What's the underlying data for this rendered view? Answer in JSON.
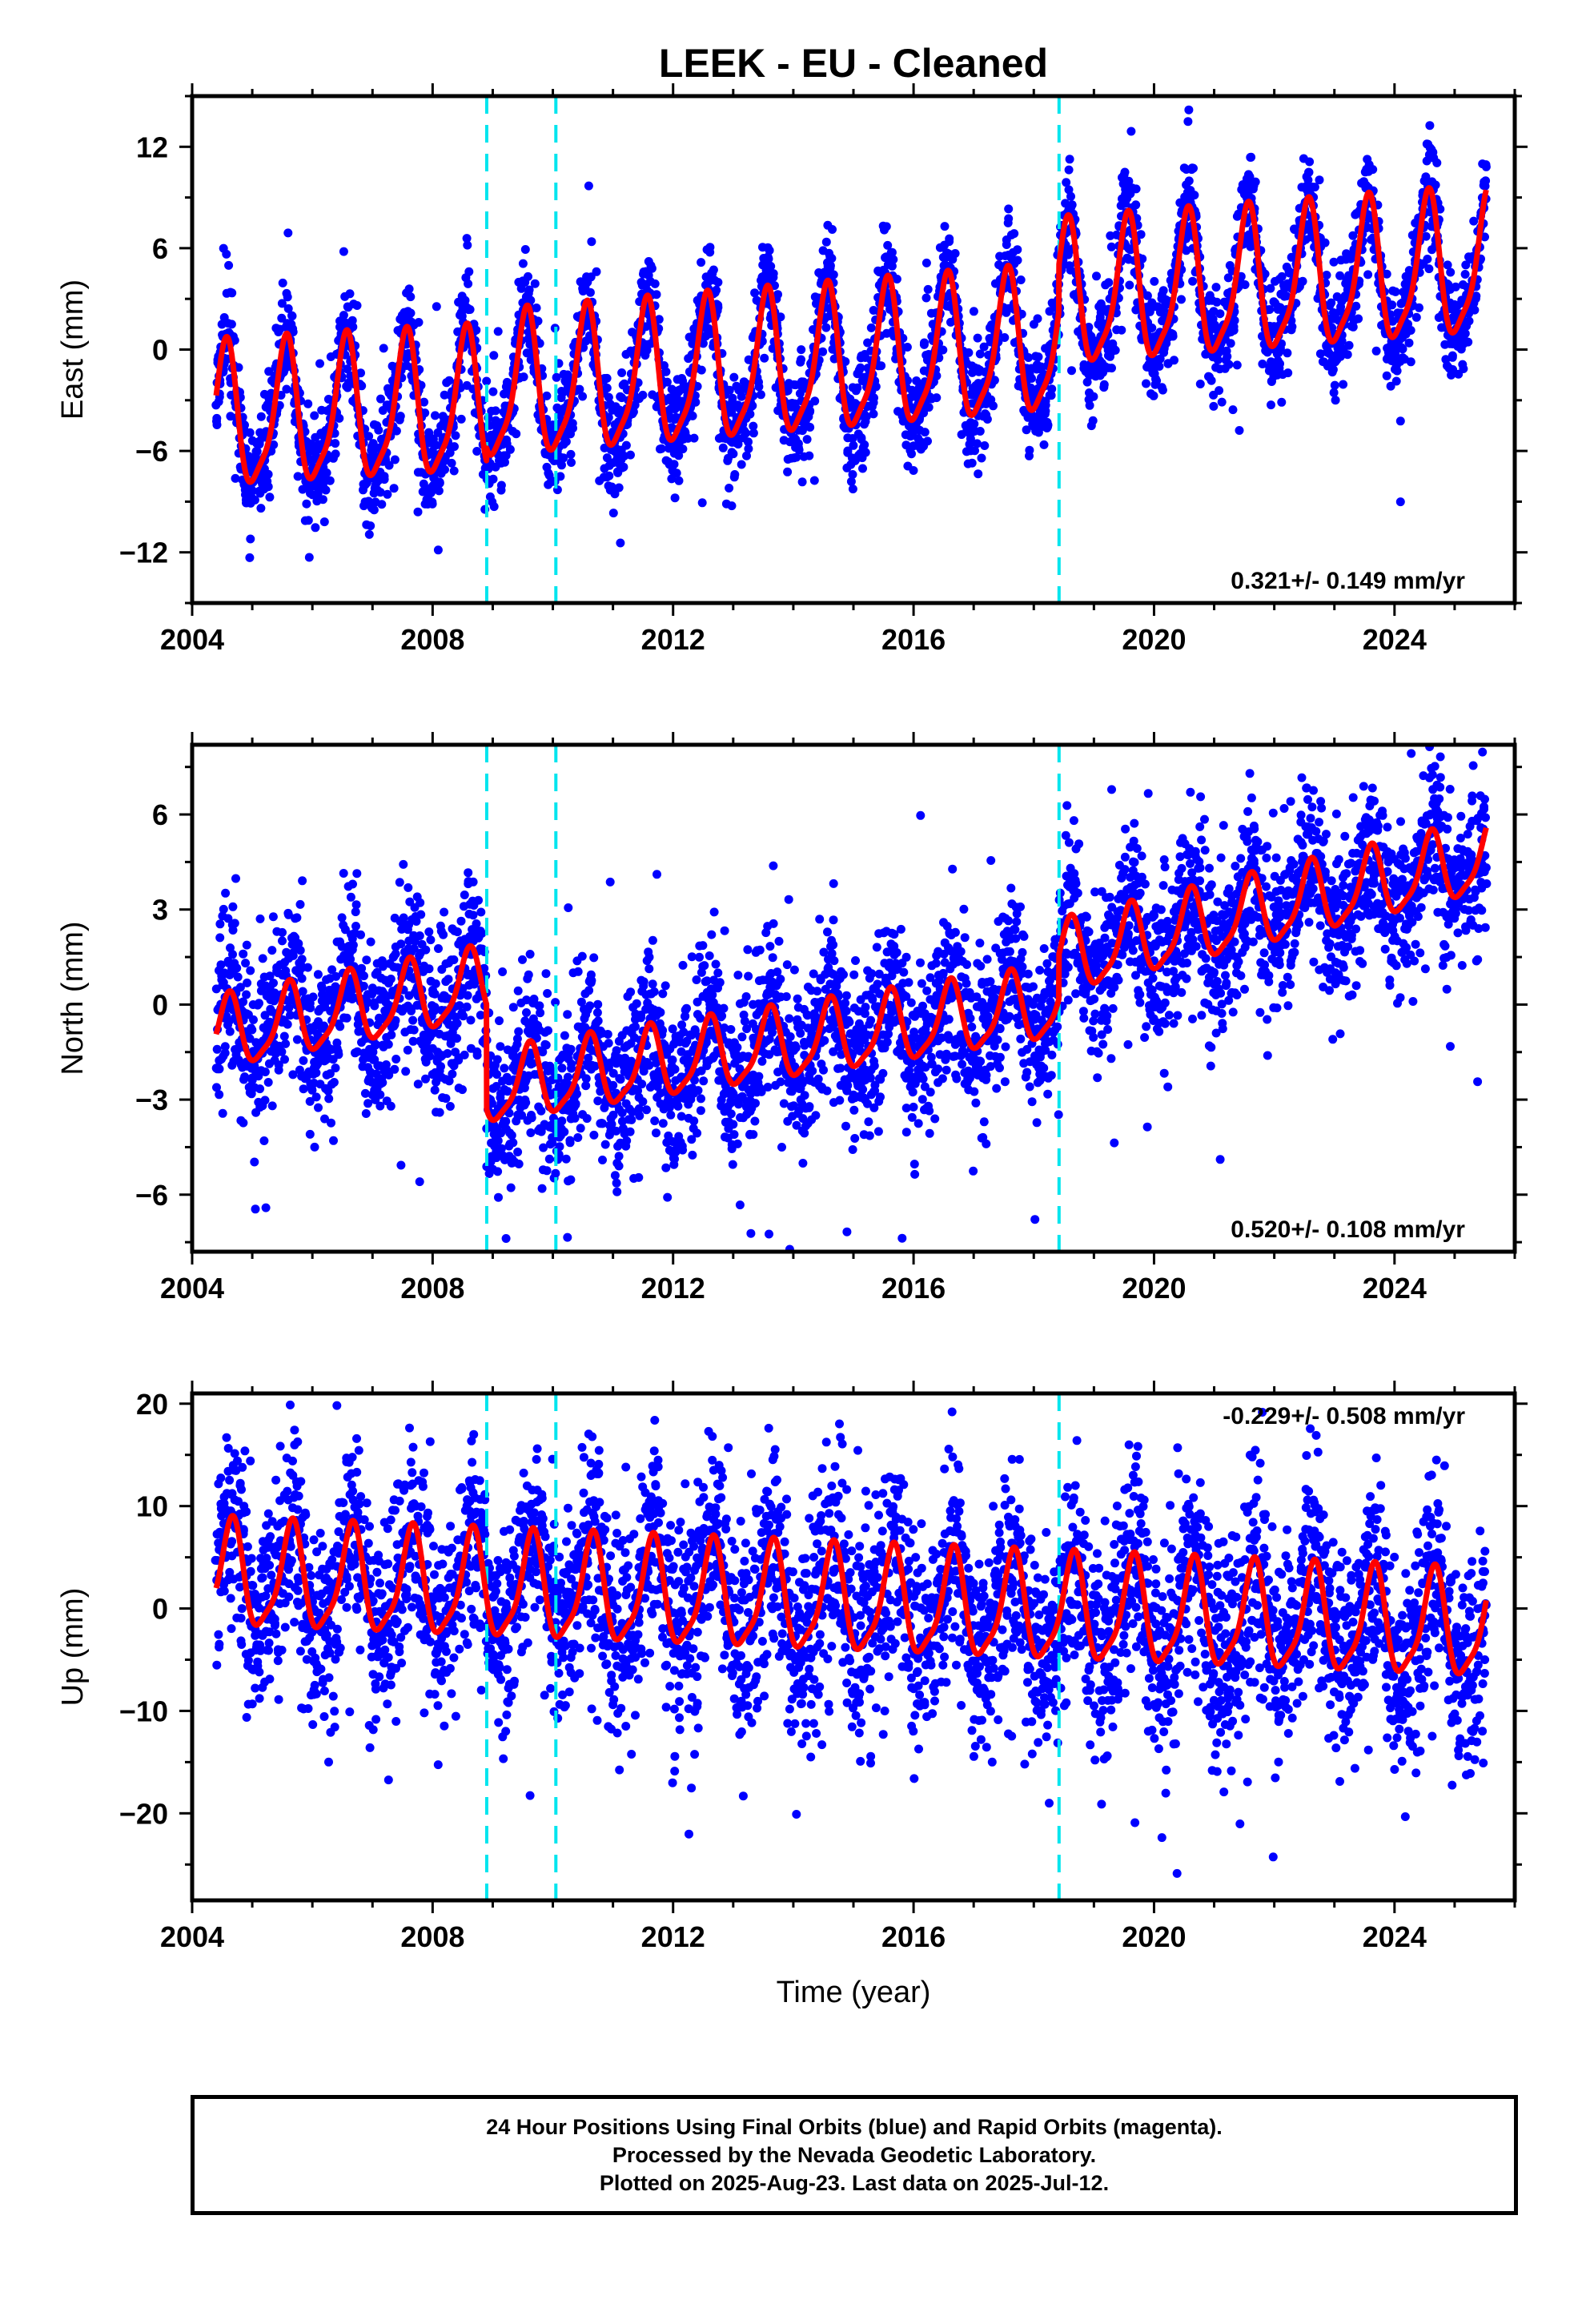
{
  "chart_data": {
    "title": "LEEK  - EU - Cleaned",
    "xlabel": "Time (year)",
    "xlim": [
      2004,
      2026
    ],
    "xticks": [
      2004,
      2008,
      2012,
      2016,
      2020,
      2024
    ],
    "data_start": 2004.4,
    "data_end": 2025.53,
    "offset_lines": [
      2008.9,
      2010.05,
      2018.42
    ],
    "colors": {
      "points": "#0000ff",
      "model": "#ff0000",
      "offsets": "#00e5ee",
      "frame": "#000000"
    },
    "panels": [
      {
        "type": "scatter",
        "ylabel": "East (mm)",
        "ylim": [
          -15,
          15
        ],
        "yticks": [
          -12,
          -6,
          0,
          6,
          12
        ],
        "rate_label": "0.321+/- 0.149 mm/yr",
        "rate_position": "bottom-right",
        "model": {
          "amplitude": 4.1,
          "phase_peak": 0.55,
          "baseline": [
            [
              2004.4,
              -4.3
            ],
            [
              2008.9,
              -3.4
            ],
            [
              2008.9,
              -2.6
            ],
            [
              2018.42,
              0.2
            ],
            [
              2018.42,
              2.9
            ],
            [
              2025.53,
              4.8
            ]
          ]
        },
        "scatter": {
          "noise": 1.6,
          "seed": 11
        }
      },
      {
        "type": "scatter",
        "ylabel": "North (mm)",
        "ylim": [
          -7.8,
          8.2
        ],
        "yticks": [
          -6,
          -3,
          0,
          3,
          6
        ],
        "rate_label": "0.520+/- 0.108 mm/yr",
        "rate_position": "bottom-right",
        "model": {
          "amplitude": 1.1,
          "phase_peak": 0.6,
          "baseline": [
            [
              2004.4,
              -1.0
            ],
            [
              2008.9,
              0.6
            ],
            [
              2008.9,
              -2.7
            ],
            [
              2018.42,
              0.0
            ],
            [
              2018.42,
              1.4
            ],
            [
              2025.53,
              4.6
            ]
          ]
        },
        "scatter": {
          "noise": 1.3,
          "seed": 23
        }
      },
      {
        "type": "scatter",
        "ylabel": "Up (mm)",
        "ylim": [
          -28.5,
          21
        ],
        "yticks": [
          -20,
          -10,
          0,
          10,
          20
        ],
        "rate_label": "-0.229+/- 0.508 mm/yr",
        "rate_position": "top-right",
        "model": {
          "amplitude": 5.0,
          "phase_peak": 0.65,
          "baseline": [
            [
              2004.4,
              3.0
            ],
            [
              2025.53,
              -2.0
            ]
          ]
        },
        "scatter": {
          "noise": 5.0,
          "seed": 37
        }
      }
    ]
  },
  "footer": {
    "line1": "24 Hour Positions Using Final Orbits (blue) and Rapid Orbits (magenta).",
    "line2": "Processed by the Nevada Geodetic Laboratory.",
    "line3": "Plotted on 2025-Aug-23. Last data on 2025-Jul-12."
  }
}
